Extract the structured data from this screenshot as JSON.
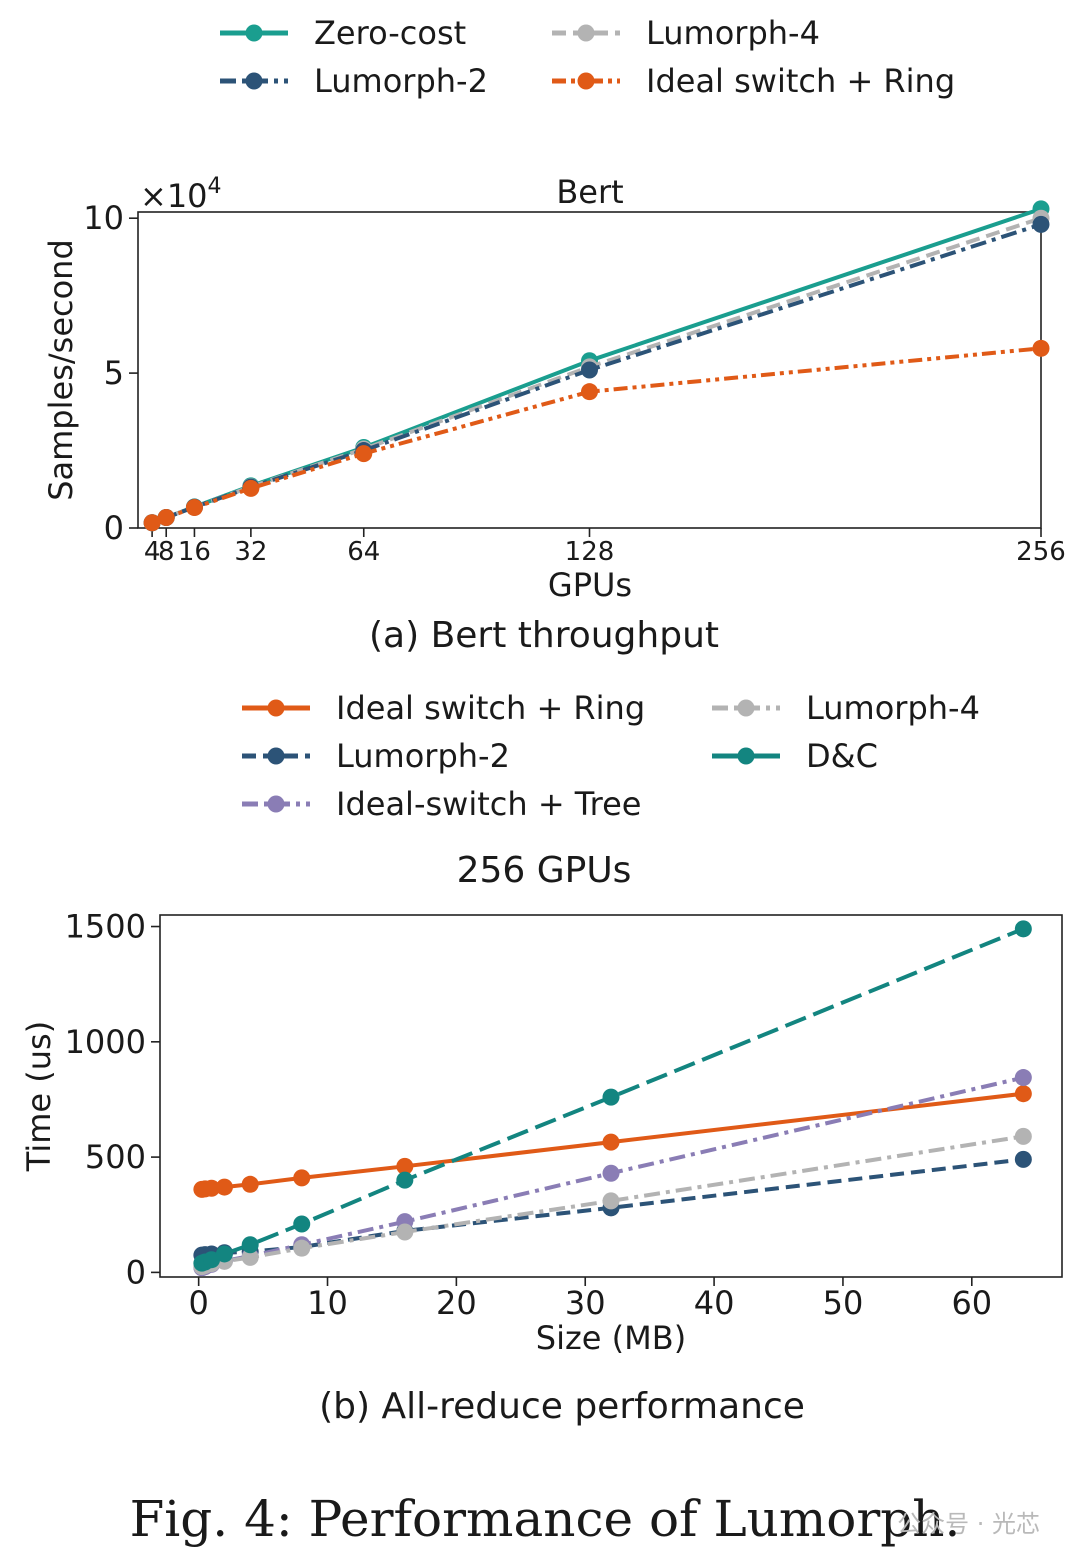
{
  "chart_data": [
    {
      "type": "line",
      "title": "Bert",
      "xlabel": "GPUs",
      "ylabel": "Samples/second",
      "y_multiplier_label": "×10",
      "y_multiplier_exp": "4",
      "x_scale": "linear",
      "xlim": [
        0,
        256
      ],
      "ylim": [
        0,
        10.2
      ],
      "x_ticks": [
        4,
        8,
        16,
        32,
        64,
        128,
        256
      ],
      "x_tick_labels": [
        "4",
        "8",
        "16",
        "32",
        "64",
        "128",
        "256"
      ],
      "y_ticks": [
        0,
        5,
        10
      ],
      "y_tick_labels": [
        "0",
        "5",
        "10"
      ],
      "legend_position": "top, outside, 2 columns",
      "legend_order": [
        0,
        1,
        2,
        3
      ],
      "caption": "(a) Bert throughput",
      "series": [
        {
          "name": "Zero-cost",
          "color": "#1a9e8f",
          "style": "solid",
          "x": [
            4,
            8,
            16,
            32,
            64,
            128,
            256
          ],
          "values": [
            0.17,
            0.34,
            0.68,
            1.36,
            2.6,
            5.4,
            10.3
          ]
        },
        {
          "name": "Lumorph-4",
          "color": "#b3b3b3",
          "style": "dashed",
          "x": [
            4,
            8,
            16,
            32,
            64,
            128,
            256
          ],
          "values": [
            0.17,
            0.34,
            0.67,
            1.33,
            2.55,
            5.2,
            10.0
          ]
        },
        {
          "name": "Lumorph-2",
          "color": "#2c5377",
          "style": "dashdot",
          "x": [
            4,
            8,
            16,
            32,
            64,
            128,
            256
          ],
          "values": [
            0.17,
            0.34,
            0.67,
            1.32,
            2.5,
            5.1,
            9.8
          ]
        },
        {
          "name": "Ideal switch + Ring",
          "color": "#e05a17",
          "style": "dashdotdot",
          "x": [
            4,
            8,
            16,
            32,
            64,
            128,
            256
          ],
          "values": [
            0.17,
            0.34,
            0.66,
            1.28,
            2.4,
            4.4,
            5.8
          ]
        }
      ]
    },
    {
      "type": "line",
      "title": "256 GPUs",
      "xlabel": "Size (MB)",
      "ylabel": "Time (us)",
      "xlim": [
        -3,
        67
      ],
      "ylim": [
        -20,
        1550
      ],
      "x_ticks": [
        0,
        10,
        20,
        30,
        40,
        50,
        60
      ],
      "x_tick_labels": [
        "0",
        "10",
        "20",
        "30",
        "40",
        "50",
        "60"
      ],
      "y_ticks": [
        0,
        500,
        1000,
        1500
      ],
      "y_tick_labels": [
        "0",
        "500",
        "1000",
        "1500"
      ],
      "legend_position": "top, outside, 2 columns",
      "legend_order": [
        0,
        3,
        1,
        4,
        2
      ],
      "caption": "(b) All-reduce performance",
      "series": [
        {
          "name": "Ideal switch + Ring",
          "color": "#e05a17",
          "style": "solid",
          "x": [
            0.25,
            0.5,
            1,
            2,
            4,
            8,
            16,
            32,
            64
          ],
          "values": [
            360,
            362,
            365,
            370,
            382,
            410,
            460,
            565,
            775
          ]
        },
        {
          "name": "Lumorph-2",
          "color": "#2c5377",
          "style": "dashed",
          "x": [
            0.25,
            0.5,
            1,
            2,
            4,
            8,
            16,
            32,
            64
          ],
          "values": [
            75,
            77,
            80,
            85,
            90,
            110,
            180,
            280,
            490
          ]
        },
        {
          "name": "Ideal-switch + Tree",
          "color": "#8a7db5",
          "style": "dashdot",
          "x": [
            0.25,
            0.5,
            1,
            2,
            4,
            8,
            16,
            32,
            64
          ],
          "values": [
            20,
            25,
            35,
            50,
            70,
            120,
            220,
            430,
            845
          ]
        },
        {
          "name": "Lumorph-4",
          "color": "#b3b3b3",
          "style": "dashdot",
          "x": [
            0.25,
            0.5,
            1,
            2,
            4,
            8,
            16,
            32,
            64
          ],
          "values": [
            25,
            30,
            38,
            48,
            65,
            105,
            175,
            310,
            590
          ]
        },
        {
          "name": "D&C",
          "color": "#138580",
          "style": "longdash",
          "x": [
            0.25,
            0.5,
            1,
            2,
            4,
            8,
            16,
            32,
            64
          ],
          "values": [
            40,
            45,
            55,
            80,
            120,
            210,
            400,
            760,
            1490
          ]
        }
      ]
    }
  ],
  "figure_caption": "Fig. 4: Performance of Lumorph.",
  "watermark": "公众号 · 光芯"
}
